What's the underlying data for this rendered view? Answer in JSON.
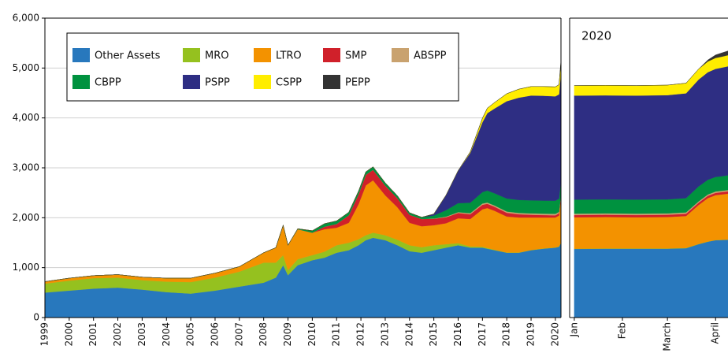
{
  "chart_data": [
    {
      "type": "area",
      "stacked": true,
      "grid": true,
      "legend": "upper left",
      "x": [
        1999,
        2000,
        2001,
        2002,
        2003,
        2004,
        2005,
        2006,
        2007,
        2008,
        2008.5,
        2008.8,
        2009,
        2009.4,
        2010,
        2010.5,
        2011,
        2011.5,
        2011.9,
        2012.2,
        2012.5,
        2013,
        2013.5,
        2014,
        2014.5,
        2015,
        2015.5,
        2016,
        2016.5,
        2017,
        2017.2,
        2017.5,
        2018,
        2018.5,
        2019,
        2019.5,
        2020,
        2020.15,
        2020.23
      ],
      "xlim": [
        1999,
        2020.23
      ],
      "xticks": [
        1999,
        2000,
        2001,
        2002,
        2003,
        2004,
        2005,
        2006,
        2007,
        2008,
        2009,
        2010,
        2011,
        2012,
        2013,
        2014,
        2015,
        2016,
        2017,
        2018,
        2019,
        2020
      ],
      "ylim": [
        0,
        6000
      ],
      "yticks": [
        0,
        {
          "value": 1000,
          "label": "1,000"
        },
        {
          "value": 2000,
          "label": "2,000"
        },
        {
          "value": 3000,
          "label": "3,000"
        },
        {
          "value": 4000,
          "label": "4,000"
        },
        {
          "value": 5000,
          "label": "5,000"
        },
        {
          "value": 6000,
          "label": "6,000"
        }
      ],
      "series": [
        {
          "name": "Other Assets",
          "color": "#2878bd",
          "values": [
            500,
            540,
            580,
            600,
            560,
            510,
            480,
            540,
            620,
            700,
            800,
            1050,
            850,
            1050,
            1150,
            1200,
            1300,
            1350,
            1450,
            1550,
            1600,
            1550,
            1450,
            1330,
            1300,
            1350,
            1400,
            1450,
            1400,
            1400,
            1380,
            1350,
            1300,
            1300,
            1350,
            1380,
            1400,
            1420,
            1500
          ]
        },
        {
          "name": "MRO",
          "color": "#95c11f",
          "values": [
            180,
            200,
            210,
            200,
            190,
            210,
            230,
            260,
            300,
            400,
            300,
            200,
            100,
            120,
            100,
            120,
            150,
            150,
            120,
            100,
            100,
            100,
            110,
            120,
            110,
            100,
            70,
            40,
            25,
            20,
            15,
            10,
            5,
            5,
            5,
            5,
            5,
            5,
            5
          ]
        },
        {
          "name": "LTRO",
          "color": "#f39200",
          "values": [
            40,
            50,
            50,
            60,
            60,
            70,
            80,
            90,
            100,
            200,
            300,
            600,
            500,
            600,
            450,
            450,
            350,
            400,
            700,
            1000,
            1050,
            800,
            650,
            450,
            420,
            400,
            420,
            500,
            550,
            750,
            800,
            780,
            720,
            700,
            650,
            620,
            600,
            620,
            900
          ]
        },
        {
          "name": "SMP",
          "color": "#d0202a",
          "values": [
            0,
            0,
            0,
            0,
            0,
            0,
            0,
            0,
            0,
            0,
            0,
            0,
            0,
            0,
            0,
            50,
            75,
            150,
            200,
            210,
            210,
            195,
            180,
            160,
            145,
            130,
            120,
            105,
            95,
            90,
            85,
            80,
            75,
            65,
            55,
            50,
            45,
            45,
            45
          ]
        },
        {
          "name": "ABSPP",
          "color": "#c9a26f",
          "values": [
            0,
            0,
            0,
            0,
            0,
            0,
            0,
            0,
            0,
            0,
            0,
            0,
            0,
            0,
            0,
            0,
            0,
            0,
            0,
            0,
            0,
            0,
            0,
            0,
            0,
            5,
            12,
            18,
            22,
            24,
            25,
            25,
            26,
            27,
            27,
            28,
            28,
            28,
            28
          ]
        },
        {
          "name": "CBPP",
          "color": "#00923f",
          "values": [
            0,
            0,
            0,
            0,
            0,
            0,
            0,
            0,
            0,
            0,
            0,
            0,
            0,
            10,
            40,
            60,
            60,
            60,
            60,
            60,
            60,
            55,
            50,
            40,
            35,
            60,
            130,
            180,
            210,
            230,
            240,
            245,
            260,
            260,
            262,
            262,
            265,
            265,
            275
          ]
        },
        {
          "name": "PSPP",
          "color": "#2e2e83",
          "values": [
            0,
            0,
            0,
            0,
            0,
            0,
            0,
            0,
            0,
            0,
            0,
            0,
            0,
            0,
            0,
            0,
            0,
            0,
            0,
            0,
            0,
            0,
            0,
            0,
            0,
            30,
            300,
            650,
            1000,
            1400,
            1550,
            1700,
            1950,
            2050,
            2100,
            2100,
            2090,
            2090,
            2170
          ]
        },
        {
          "name": "CSPP",
          "color": "#ffed00",
          "values": [
            0,
            0,
            0,
            0,
            0,
            0,
            0,
            0,
            0,
            0,
            0,
            0,
            0,
            0,
            0,
            0,
            0,
            0,
            0,
            0,
            0,
            0,
            0,
            0,
            0,
            0,
            0,
            0,
            20,
            80,
            100,
            120,
            150,
            170,
            180,
            185,
            190,
            195,
            200
          ]
        },
        {
          "name": "PEPP",
          "color": "#333333",
          "values": [
            0,
            0,
            0,
            0,
            0,
            0,
            0,
            0,
            0,
            0,
            0,
            0,
            0,
            0,
            0,
            0,
            0,
            0,
            0,
            0,
            0,
            0,
            0,
            0,
            0,
            0,
            0,
            0,
            0,
            0,
            0,
            0,
            0,
            0,
            0,
            0,
            0,
            0,
            40
          ]
        }
      ]
    },
    {
      "type": "area",
      "stacked": true,
      "title": "2020",
      "x": [
        0,
        20,
        40,
        60,
        72,
        80,
        86,
        91,
        95,
        99
      ],
      "xlim": [
        -3,
        99
      ],
      "xticks": [
        {
          "value": 0,
          "label": "Jan"
        },
        {
          "value": 31,
          "label": "Feb"
        },
        {
          "value": 60,
          "label": "March"
        },
        {
          "value": 91,
          "label": "April"
        }
      ],
      "ylim": [
        0,
        6000
      ],
      "series": [
        {
          "color": "#2878bd",
          "values": [
            1375,
            1380,
            1380,
            1380,
            1390,
            1470,
            1520,
            1550,
            1555,
            1560
          ]
        },
        {
          "color": "#95c11f",
          "values": [
            5,
            5,
            5,
            5,
            5,
            5,
            4,
            3,
            3,
            3
          ]
        },
        {
          "color": "#f39200",
          "values": [
            630,
            630,
            625,
            630,
            640,
            780,
            870,
            900,
            910,
            920
          ]
        },
        {
          "color": "#d0202a",
          "values": [
            45,
            45,
            45,
            45,
            45,
            45,
            45,
            45,
            45,
            45
          ]
        },
        {
          "color": "#c9a26f",
          "values": [
            28,
            28,
            28,
            28,
            28,
            28,
            28,
            28,
            28,
            28
          ]
        },
        {
          "color": "#00923f",
          "values": [
            280,
            280,
            280,
            280,
            285,
            300,
            295,
            292,
            292,
            295
          ]
        },
        {
          "color": "#2e2e83",
          "values": [
            2085,
            2085,
            2085,
            2090,
            2100,
            2140,
            2155,
            2165,
            2175,
            2185
          ]
        },
        {
          "color": "#ffed00",
          "values": [
            200,
            200,
            200,
            200,
            205,
            210,
            215,
            220,
            220,
            222
          ]
        },
        {
          "color": "#333333",
          "values": [
            0,
            0,
            0,
            0,
            0,
            0,
            30,
            60,
            75,
            85
          ]
        }
      ]
    }
  ]
}
